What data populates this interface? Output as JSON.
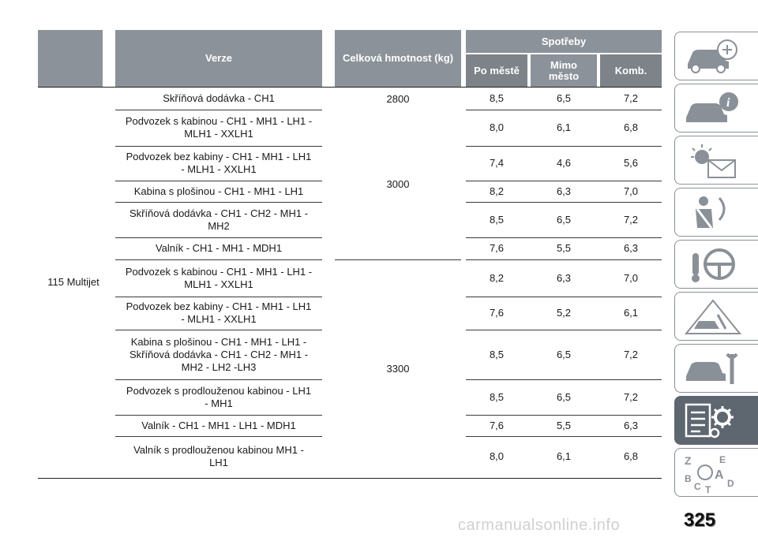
{
  "header": {
    "verze": "Verze",
    "hmotnost": "Celková hmotnost (kg)",
    "spotreby": "Spotřeby",
    "po_meste": "Po městě",
    "mimo_mesto": "Mimo\nměsto",
    "komb": "Komb."
  },
  "engine": "115 Multijet",
  "mass_3000": "3000",
  "mass_3300": "3300",
  "rows": [
    {
      "version": "Skříňová dodávka - CH1",
      "mass": "2800",
      "city": "8,5",
      "extra": "6,5",
      "comb": "7,2"
    },
    {
      "version": "Podvozek s kabinou - CH1 - MH1 - LH1 -\nMLH1 - XXLH1",
      "city": "8,0",
      "extra": "6,1",
      "comb": "6,8"
    },
    {
      "version": "Podvozek bez kabiny - CH1 - MH1 - LH1\n- MLH1 - XXLH1",
      "city": "7,4",
      "extra": "4,6",
      "comb": "5,6"
    },
    {
      "version": "Kabina s plošinou - CH1 - MH1 - LH1",
      "city": "8,2",
      "extra": "6,3",
      "comb": "7,0"
    },
    {
      "version": "Skříňová dodávka - CH1 - CH2 - MH1 -\nMH2",
      "city": "8,5",
      "extra": "6,5",
      "comb": "7,2"
    },
    {
      "version": "Valník - CH1 - MH1 - MDH1",
      "city": "7,6",
      "extra": "5,5",
      "comb": "6,3"
    },
    {
      "version": "Podvozek s kabinou - CH1 - MH1 - LH1 -\nMLH1 - XXLH1",
      "city": "8,2",
      "extra": "6,3",
      "comb": "7,0"
    },
    {
      "version": "Podvozek bez kabiny - CH1 - MH1 - LH1\n- MLH1 - XXLH1",
      "city": "7,6",
      "extra": "5,2",
      "comb": "6,1"
    },
    {
      "version": "Kabina s plošinou - CH1 - MH1 - LH1 -\nSkříňová dodávka - CH1 - CH2 - MH1 -\nMH2 - LH2 -LH3",
      "city": "8,5",
      "extra": "6,5",
      "comb": "7,2"
    },
    {
      "version": "Podvozek s prodlouženou kabinou - LH1\n- MH1",
      "city": "8,5",
      "extra": "6,5",
      "comb": "7,2"
    },
    {
      "version": "Valník - CH1 - MH1 - LH1 - MDH1",
      "city": "7,6",
      "extra": "5,5",
      "comb": "6,3"
    },
    {
      "version": "Valník s prodlouženou kabinou MH1 -\nLH1",
      "city": "8,0",
      "extra": "6,1",
      "comb": "6,8"
    }
  ],
  "side_tabs": [
    {
      "icon": "car-dashboard-icon",
      "active": false
    },
    {
      "icon": "car-info-icon",
      "active": false
    },
    {
      "icon": "warning-light-mail-icon",
      "active": false
    },
    {
      "icon": "seatbelt-airbag-icon",
      "active": false
    },
    {
      "icon": "key-steering-wheel-icon",
      "active": false
    },
    {
      "icon": "car-warning-triangle-icon",
      "active": false
    },
    {
      "icon": "car-wrench-icon",
      "active": false
    },
    {
      "icon": "specs-gear-icon",
      "active": true
    },
    {
      "icon": "alphabet-index-icon",
      "active": false
    }
  ],
  "page_number": "325",
  "watermark": "carmanualsonline.info"
}
